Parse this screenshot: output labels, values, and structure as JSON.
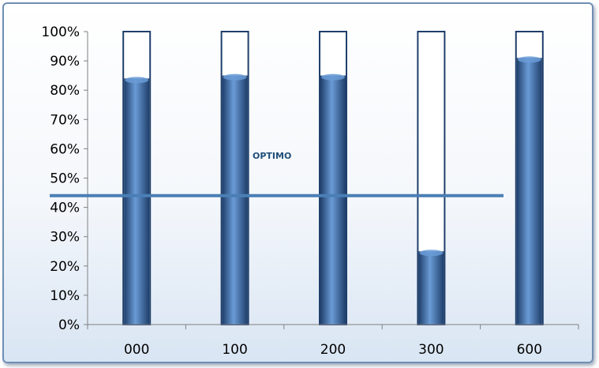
{
  "chart_data": {
    "type": "bar",
    "categories": [
      "000",
      "100",
      "200",
      "300",
      "600"
    ],
    "values": [
      84,
      85,
      85,
      25,
      91
    ],
    "ylim": [
      0,
      100
    ],
    "ytick_step": 10,
    "ytick_labels": [
      "0%",
      "10%",
      "20%",
      "30%",
      "40%",
      "50%",
      "60%",
      "70%",
      "80%",
      "90%",
      "100%"
    ],
    "reference_line": {
      "value": 44,
      "label": "OPTIMO"
    },
    "grid": false,
    "legend": "none",
    "colors": {
      "bar_dark": "#1f3f6b",
      "bar_light": "#6a9bd6",
      "bar_outline": "#1f3f6b",
      "reference_line": "#4a7fb5",
      "annotation": "#1f4e79"
    }
  }
}
